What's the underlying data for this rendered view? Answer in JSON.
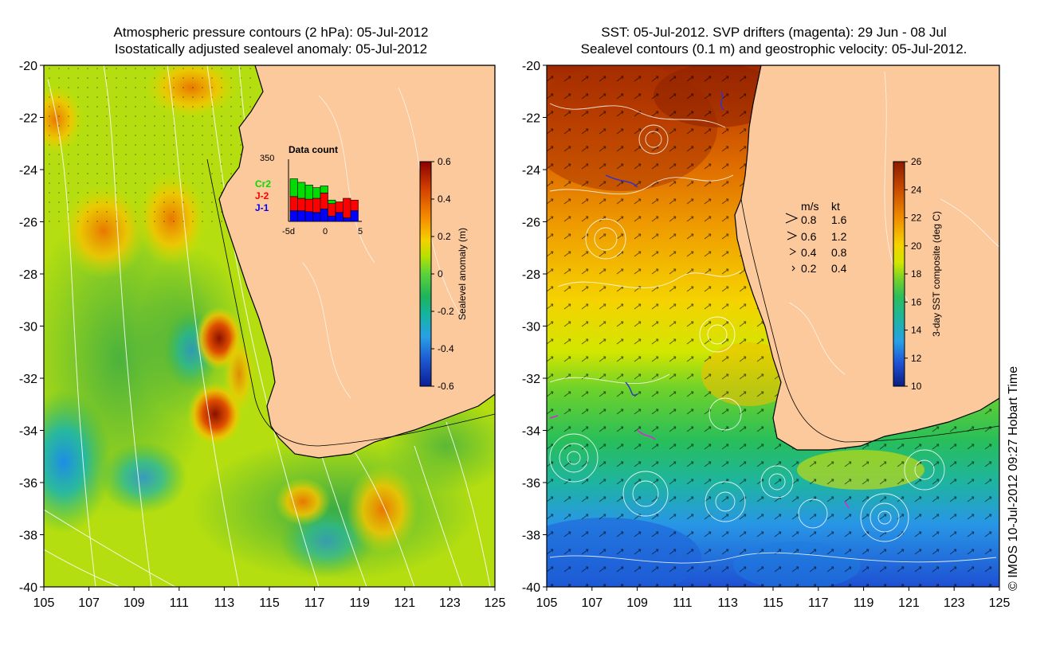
{
  "left_panel": {
    "title_line1": "Atmospheric pressure contours (2 hPa): 05-Jul-2012",
    "title_line2": "Isostatically adjusted sealevel anomaly: 05-Jul-2012",
    "y_ticks": [
      "-20",
      "-22",
      "-24",
      "-26",
      "-28",
      "-30",
      "-32",
      "-34",
      "-36",
      "-38",
      "-40"
    ],
    "x_ticks": [
      "105",
      "107",
      "109",
      "111",
      "113",
      "115",
      "117",
      "119",
      "121",
      "123",
      "125"
    ],
    "colorbar": {
      "label": "Sealevel anomaly (m)",
      "ticks": [
        "0.6",
        "0.4",
        "0.2",
        "0",
        "-0.2",
        "-0.4",
        "-0.6"
      ],
      "colors": [
        "#8b0000",
        "#d24000",
        "#f58c00",
        "#f5d000",
        "#b8e000",
        "#5cd23c",
        "#1eb45a",
        "#14b4a0",
        "#28a0e6",
        "#1e5ad2",
        "#0a1e96"
      ]
    },
    "inset": {
      "title": "Data count",
      "y_max_label": "350",
      "x_labels": [
        "-5d",
        "0",
        "5"
      ],
      "legend": [
        {
          "label": "Cr2",
          "color": "#00dd00"
        },
        {
          "label": "J-2",
          "color": "#ff0000"
        },
        {
          "label": "J-1",
          "color": "#0000ff"
        }
      ],
      "bars": [
        {
          "day": -4,
          "j1": 60,
          "j2": 80,
          "cr2": 100
        },
        {
          "day": -3,
          "j1": 60,
          "j2": 70,
          "cr2": 90
        },
        {
          "day": -2,
          "j1": 55,
          "j2": 70,
          "cr2": 80
        },
        {
          "day": -1,
          "j1": 50,
          "j2": 80,
          "cr2": 60
        },
        {
          "day": 0,
          "j1": 70,
          "j2": 90,
          "cr2": 40
        },
        {
          "day": 1,
          "j1": 30,
          "j2": 70,
          "cr2": 20
        },
        {
          "day": 2,
          "j1": 50,
          "j2": 60,
          "cr2": 0
        },
        {
          "day": 3,
          "j1": 20,
          "j2": 110,
          "cr2": 0
        },
        {
          "day": 4,
          "j1": 60,
          "j2": 60,
          "cr2": 0
        }
      ]
    }
  },
  "right_panel": {
    "title_line1": "SST: 05-Jul-2012. SVP drifters (magenta): 29 Jun - 08 Jul",
    "title_line2": "Sealevel contours (0.1 m) and geostrophic velocity: 05-Jul-2012.",
    "y_ticks": [
      "-20",
      "-22",
      "-24",
      "-26",
      "-28",
      "-30",
      "-32",
      "-34",
      "-36",
      "-38",
      "-40"
    ],
    "x_ticks": [
      "105",
      "107",
      "109",
      "111",
      "113",
      "115",
      "117",
      "119",
      "121",
      "123",
      "125"
    ],
    "colorbar": {
      "label": "3-day SST composite (deg C)",
      "ticks": [
        "26",
        "24",
        "22",
        "20",
        "18",
        "16",
        "14",
        "12",
        "10"
      ],
      "colors": [
        "#8b1a00",
        "#c84a00",
        "#f08c00",
        "#f5d200",
        "#d2e600",
        "#78d228",
        "#2dbe5a",
        "#1eb4a0",
        "#28a0e6",
        "#1e50d2",
        "#0a1e82"
      ]
    },
    "velocity_legend": {
      "header_ms": "m/s",
      "header_kt": "kt",
      "rows": [
        {
          "ms": "0.8",
          "kt": "1.6"
        },
        {
          "ms": "0.6",
          "kt": "1.2"
        },
        {
          "ms": "0.4",
          "kt": "0.8"
        },
        {
          "ms": "0.2",
          "kt": "0.4"
        }
      ]
    }
  },
  "credit": "© IMOS 10-Jul-2012 09:27 Hobart Time",
  "colors": {
    "land": "#fbc99c",
    "coast": "#000000",
    "contour": "#ffffff",
    "drifter": "#cc33cc"
  }
}
